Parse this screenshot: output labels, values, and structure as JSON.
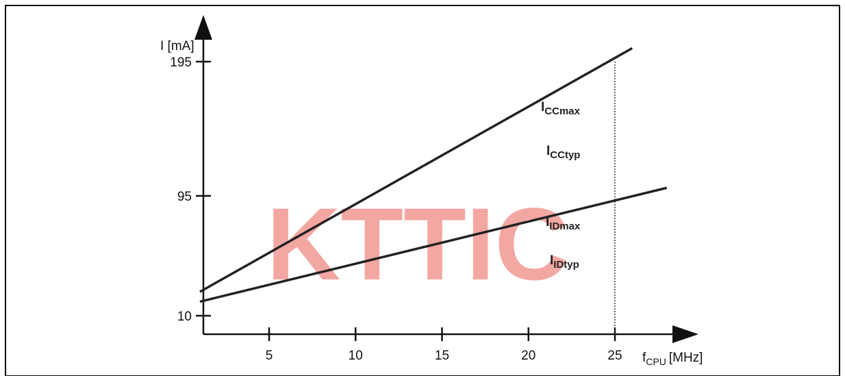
{
  "chart_data": {
    "type": "line",
    "title": "",
    "xlabel": {
      "main": "f",
      "sub": "CPU",
      "unit": "[MHz]"
    },
    "ylabel": "I [mA]",
    "x_ticks": [
      "5",
      "10",
      "15",
      "20",
      "25"
    ],
    "y_ticks": [
      "10",
      "95",
      "195"
    ],
    "x_tick_values": [
      5,
      10,
      15,
      20,
      25
    ],
    "y_tick_values": [
      10,
      95,
      195
    ],
    "series": [
      {
        "main": "I",
        "sub": "CCmax",
        "points": [
          [
            1,
            27
          ],
          [
            26,
            205
          ]
        ]
      },
      {
        "main": "I",
        "sub": "CCtyp",
        "points": []
      },
      {
        "main": "I",
        "sub": "IDmax",
        "points": [
          [
            1,
            20
          ],
          [
            28,
            101
          ]
        ]
      },
      {
        "main": "I",
        "sub": "IDtyp",
        "points": []
      }
    ],
    "reference_line": {
      "x": 25
    },
    "colors": {
      "line": "#222222",
      "axis": "#111111",
      "watermark": "#f08a84",
      "frame": "#000000"
    }
  },
  "watermark": "KTTIC"
}
